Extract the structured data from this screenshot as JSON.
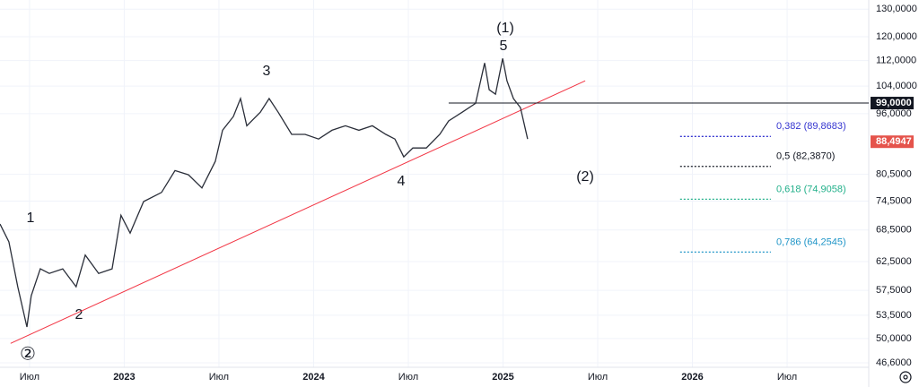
{
  "chart_data": {
    "type": "line",
    "log_scale": true,
    "grid": true,
    "color": "#2a2e39",
    "x": [
      2022.344,
      2022.391,
      2022.438,
      2022.486,
      2022.509,
      2022.557,
      2022.604,
      2022.675,
      2022.746,
      2022.794,
      2022.865,
      2022.936,
      2022.983,
      2023.031,
      2023.102,
      2023.197,
      2023.268,
      2023.339,
      2023.41,
      2023.481,
      2023.519,
      2023.576,
      2023.614,
      2023.647,
      2023.718,
      2023.765,
      2023.813,
      2023.884,
      2023.955,
      2024.026,
      2024.097,
      2024.168,
      2024.239,
      2024.31,
      2024.381,
      2024.429,
      2024.476,
      2024.524,
      2024.595,
      2024.666,
      2024.713,
      2024.784,
      2024.855,
      2024.903,
      2024.927,
      2024.96,
      2024.998,
      2025.021,
      2025.055,
      2025.092,
      2025.13
    ],
    "values": [
      69.7,
      66.2,
      58.1,
      51.7,
      56.6,
      61.2,
      60.4,
      61.2,
      58.1,
      63.7,
      60.4,
      61.2,
      71.5,
      67.9,
      74.4,
      76.4,
      81.4,
      80.4,
      77.4,
      83.6,
      91.5,
      95.2,
      100.3,
      92.7,
      96.4,
      100.3,
      96.4,
      90.4,
      90.4,
      89.2,
      91.5,
      92.7,
      91.5,
      92.7,
      90.4,
      89.2,
      84.7,
      86.9,
      86.9,
      90.4,
      94.0,
      96.4,
      98.9,
      111.2,
      102.9,
      101.6,
      112.7,
      105.6,
      100.3,
      97.7,
      89.2
    ],
    "xlim": [
      2022.344,
      2026.931
    ],
    "xticks": [
      {
        "value": 2022.5,
        "label": "Июл"
      },
      2023,
      {
        "value": 2023.5,
        "label": "Июл"
      },
      2024,
      {
        "value": 2024.5,
        "label": "Июл"
      },
      2025,
      {
        "value": 2025.5,
        "label": "Июл"
      },
      2026,
      {
        "value": 2026.5,
        "label": "Июл"
      }
    ],
    "ylim": [
      46.0,
      133.5
    ],
    "yticks": [
      {
        "value": 130,
        "label": "130,0000"
      },
      {
        "value": 120,
        "label": "120,0000"
      },
      {
        "value": 112,
        "label": "112,0000"
      },
      {
        "value": 104,
        "label": "104,0000"
      },
      {
        "value": 96,
        "label": "96,0000"
      },
      {
        "value": 80.5,
        "label": "80,5000"
      },
      {
        "value": 74.5,
        "label": "74,5000"
      },
      {
        "value": 68.5,
        "label": "68,5000"
      },
      {
        "value": 62.5,
        "label": "62,5000"
      },
      {
        "value": 57.5,
        "label": "57,5000"
      },
      {
        "value": 53.5,
        "label": "53,5000"
      },
      {
        "value": 50,
        "label": "50,0000"
      },
      {
        "value": 46.6,
        "label": "46,6000"
      }
    ],
    "trendline": {
      "x": [
        2022.4,
        2025.434
      ],
      "values": [
        49.3,
        105.6
      ],
      "color": "#f23645"
    },
    "level": {
      "value": 99,
      "label": "99,0000",
      "x": [
        2024.713,
        2026.931
      ],
      "color": "#131722"
    },
    "last_price": {
      "value": 88.4947,
      "label": "88,4947",
      "color": "#e5534b"
    },
    "fib_levels": [
      {
        "value": 89.8683,
        "label": "0,382 (89,8683)",
        "color": "#3535d0"
      },
      {
        "value": 82.387,
        "label": "0,5 (82,3870)",
        "color": "#131722"
      },
      {
        "value": 74.9058,
        "label": "0,618 (74,9058)",
        "color": "#22b08a"
      },
      {
        "value": 64.2545,
        "label": "0,786 (64,2545)",
        "color": "#2196c8"
      }
    ],
    "fib_x": [
      2025.935,
      2026.414
    ],
    "annotations": [
      "(1)",
      "5",
      "3",
      "1",
      "2",
      "4",
      "(2)",
      "②"
    ]
  }
}
